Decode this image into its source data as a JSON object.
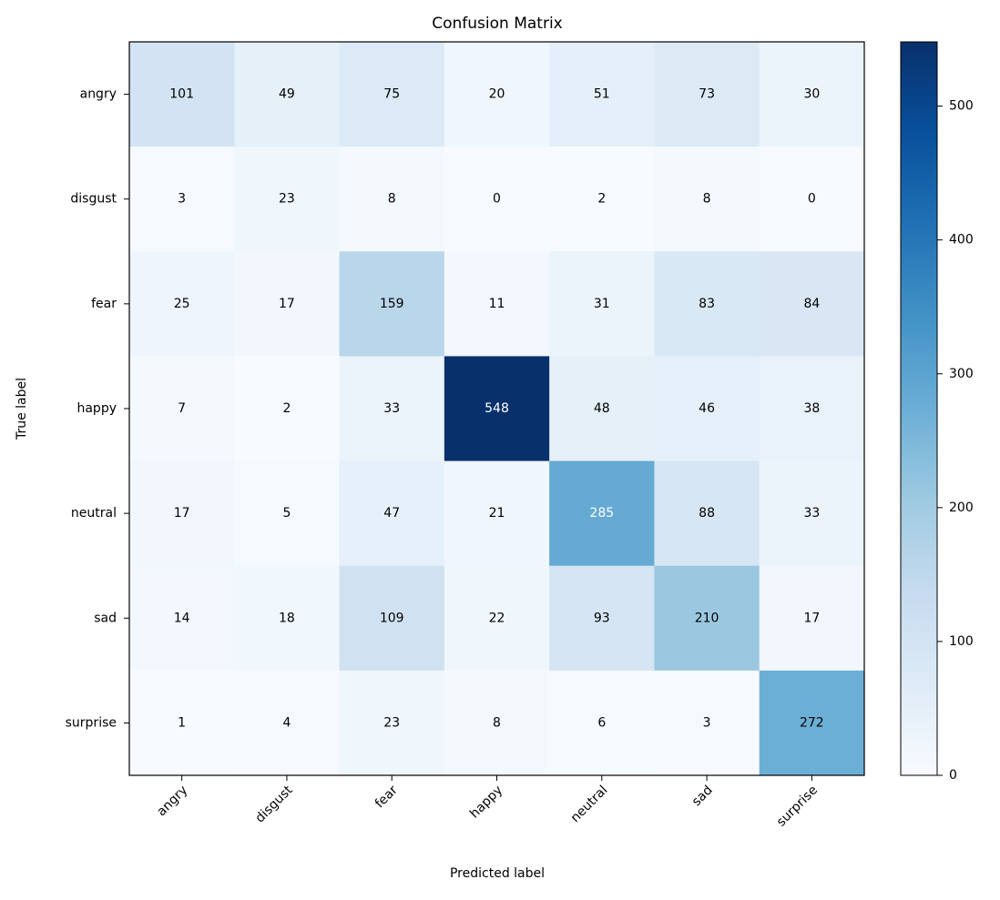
{
  "chart_data": {
    "type": "heatmap",
    "title": "Confusion Matrix",
    "xlabel": "Predicted label",
    "ylabel": "True label",
    "x_categories": [
      "angry",
      "disgust",
      "fear",
      "happy",
      "neutral",
      "sad",
      "surprise"
    ],
    "y_categories": [
      "angry",
      "disgust",
      "fear",
      "happy",
      "neutral",
      "sad",
      "surprise"
    ],
    "values": [
      [
        101,
        49,
        75,
        20,
        51,
        73,
        30
      ],
      [
        3,
        23,
        8,
        0,
        2,
        8,
        0
      ],
      [
        25,
        17,
        159,
        11,
        31,
        83,
        84
      ],
      [
        7,
        2,
        33,
        548,
        48,
        46,
        38
      ],
      [
        17,
        5,
        47,
        21,
        285,
        88,
        33
      ],
      [
        14,
        18,
        109,
        22,
        93,
        210,
        17
      ],
      [
        1,
        4,
        23,
        8,
        6,
        3,
        272
      ]
    ],
    "colormap": "Blues",
    "clim": [
      0,
      548
    ],
    "colorbar_ticks": [
      0,
      100,
      200,
      300,
      400,
      500
    ]
  }
}
